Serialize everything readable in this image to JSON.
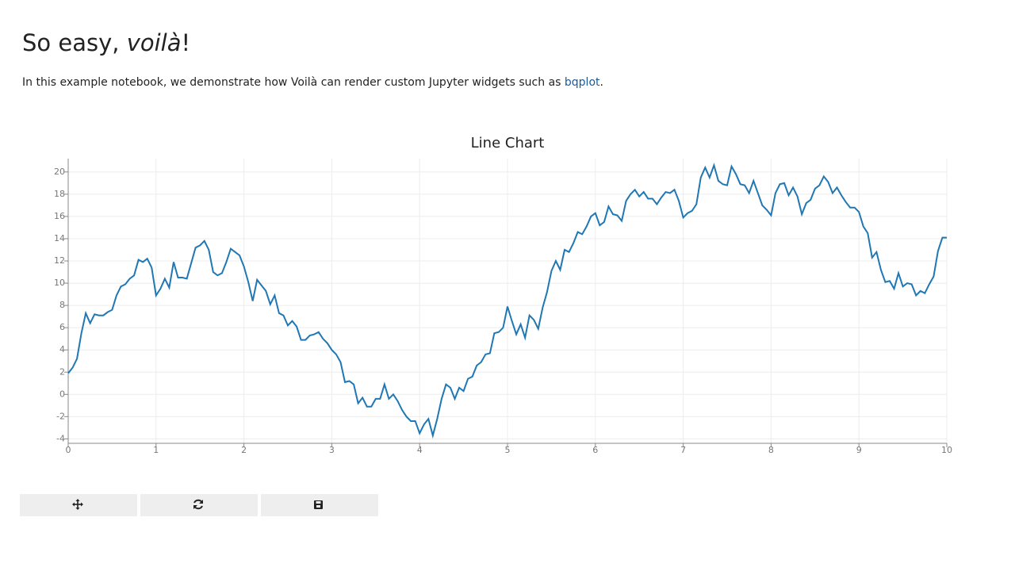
{
  "heading": [
    "So easy, ",
    "voilà",
    "!"
  ],
  "intro": {
    "text": "In this example notebook, we demonstrate how Voilà can render custom Jupyter widgets such as ",
    "link": "bqplot",
    "end": "."
  },
  "chart_data": {
    "type": "line",
    "title": "Line Chart",
    "color": "#1f77b4",
    "grid": true,
    "xlim": [
      0,
      10
    ],
    "xticks": [
      0,
      1,
      2,
      3,
      4,
      5,
      6,
      7,
      8,
      9,
      10
    ],
    "ylim": [
      -4.4,
      21.2
    ],
    "yticks": [
      -4,
      -2,
      0,
      2,
      4,
      6,
      8,
      10,
      12,
      14,
      16,
      18,
      20
    ],
    "x": [
      0,
      0.05,
      0.1,
      0.15,
      0.2,
      0.25,
      0.3,
      0.35,
      0.4,
      0.45,
      0.5,
      0.55,
      0.6,
      0.65,
      0.7,
      0.75,
      0.8,
      0.85,
      0.9,
      0.95,
      1,
      1.05,
      1.1,
      1.15,
      1.2,
      1.25,
      1.3,
      1.35,
      1.4,
      1.45,
      1.5,
      1.55,
      1.6,
      1.65,
      1.7,
      1.75,
      1.8,
      1.85,
      1.9,
      1.95,
      2,
      2.05,
      2.1,
      2.15,
      2.2,
      2.25,
      2.3,
      2.35,
      2.4,
      2.45,
      2.5,
      2.55,
      2.6,
      2.65,
      2.7,
      2.75,
      2.8,
      2.85,
      2.9,
      2.95,
      3,
      3.05,
      3.1,
      3.15,
      3.2,
      3.25,
      3.3,
      3.35,
      3.4,
      3.45,
      3.5,
      3.55,
      3.6,
      3.65,
      3.7,
      3.75,
      3.8,
      3.85,
      3.9,
      3.95,
      4,
      4.05,
      4.1,
      4.15,
      4.2,
      4.25,
      4.3,
      4.35,
      4.4,
      4.45,
      4.5,
      4.55,
      4.6,
      4.65,
      4.7,
      4.75,
      4.8,
      4.85,
      4.9,
      4.95,
      5,
      5.05,
      5.1,
      5.15,
      5.2,
      5.25,
      5.3,
      5.35,
      5.4,
      5.45,
      5.5,
      5.55,
      5.6,
      5.65,
      5.7,
      5.75,
      5.8,
      5.85,
      5.9,
      5.95,
      6,
      6.05,
      6.1,
      6.15,
      6.2,
      6.25,
      6.3,
      6.35,
      6.4,
      6.45,
      6.5,
      6.55,
      6.6,
      6.65,
      6.7,
      6.75,
      6.8,
      6.85,
      6.9,
      6.95,
      7,
      7.05,
      7.1,
      7.15,
      7.2,
      7.25,
      7.3,
      7.35,
      7.4,
      7.45,
      7.5,
      7.55,
      7.6,
      7.65,
      7.7,
      7.75,
      7.8,
      7.85,
      7.9,
      7.95,
      8,
      8.05,
      8.1,
      8.15,
      8.2,
      8.25,
      8.3,
      8.35,
      8.4,
      8.45,
      8.5,
      8.55,
      8.6,
      8.65,
      8.7,
      8.75,
      8.8,
      8.85,
      8.9,
      8.95,
      9,
      9.05,
      9.1,
      9.15,
      9.2,
      9.25,
      9.3,
      9.35,
      9.4,
      9.45,
      9.5,
      9.55,
      9.6,
      9.65,
      9.7,
      9.75,
      9.8,
      9.85,
      9.9,
      9.95,
      10
    ],
    "values": [
      1.9,
      2.4,
      3.2,
      5.5,
      7.3,
      6.4,
      7.2,
      7.1,
      7.1,
      7.4,
      7.6,
      8.9,
      9.7,
      9.9,
      10.4,
      10.7,
      12.1,
      11.9,
      12.2,
      11.4,
      8.9,
      9.5,
      10.4,
      9.6,
      11.9,
      10.5,
      10.5,
      10.4,
      11.8,
      13.2,
      13.4,
      13.8,
      13.0,
      11.0,
      10.7,
      10.9,
      11.9,
      13.1,
      12.8,
      12.5,
      11.5,
      10.1,
      8.4,
      10.3,
      9.8,
      9.3,
      8.1,
      8.9,
      7.3,
      7.1,
      6.2,
      6.6,
      6.1,
      4.9,
      4.9,
      5.3,
      5.4,
      5.6,
      5.0,
      4.6,
      4.0,
      3.6,
      2.9,
      1.1,
      1.2,
      0.9,
      -0.8,
      -0.3,
      -1.1,
      -1.1,
      -0.4,
      -0.4,
      0.9,
      -0.4,
      0.0,
      -0.6,
      -1.4,
      -2.0,
      -2.4,
      -2.4,
      -3.5,
      -2.7,
      -2.2,
      -3.7,
      -2.2,
      -0.4,
      0.9,
      0.6,
      -0.4,
      0.6,
      0.3,
      1.4,
      1.6,
      2.6,
      2.9,
      3.6,
      3.7,
      5.5,
      5.6,
      6.0,
      7.9,
      6.6,
      5.4,
      6.3,
      5.1,
      7.1,
      6.7,
      5.9,
      7.8,
      9.2,
      11.1,
      12.0,
      11.2,
      13.0,
      12.8,
      13.6,
      14.6,
      14.4,
      15.1,
      16.0,
      16.3,
      15.2,
      15.5,
      16.9,
      16.2,
      16.1,
      15.6,
      17.4,
      18.0,
      18.4,
      17.8,
      18.2,
      17.6,
      17.6,
      17.1,
      17.7,
      18.2,
      18.1,
      18.4,
      17.4,
      15.9,
      16.3,
      16.5,
      17.1,
      19.5,
      20.4,
      19.5,
      20.6,
      19.2,
      18.9,
      18.8,
      20.5,
      19.8,
      18.9,
      18.8,
      18.1,
      19.2,
      18.1,
      17.0,
      16.6,
      16.1,
      18.1,
      18.9,
      19.0,
      17.9,
      18.6,
      17.8,
      16.2,
      17.2,
      17.5,
      18.5,
      18.8,
      19.6,
      19.1,
      18.1,
      18.6,
      17.9,
      17.3,
      16.8,
      16.8,
      16.4,
      15.1,
      14.5,
      12.3,
      12.8,
      11.2,
      10.1,
      10.2,
      9.5,
      10.9,
      9.7,
      10.0,
      9.9,
      8.9,
      9.3,
      9.1,
      9.9,
      10.6,
      12.9,
      14.1,
      14.1
    ]
  }
}
